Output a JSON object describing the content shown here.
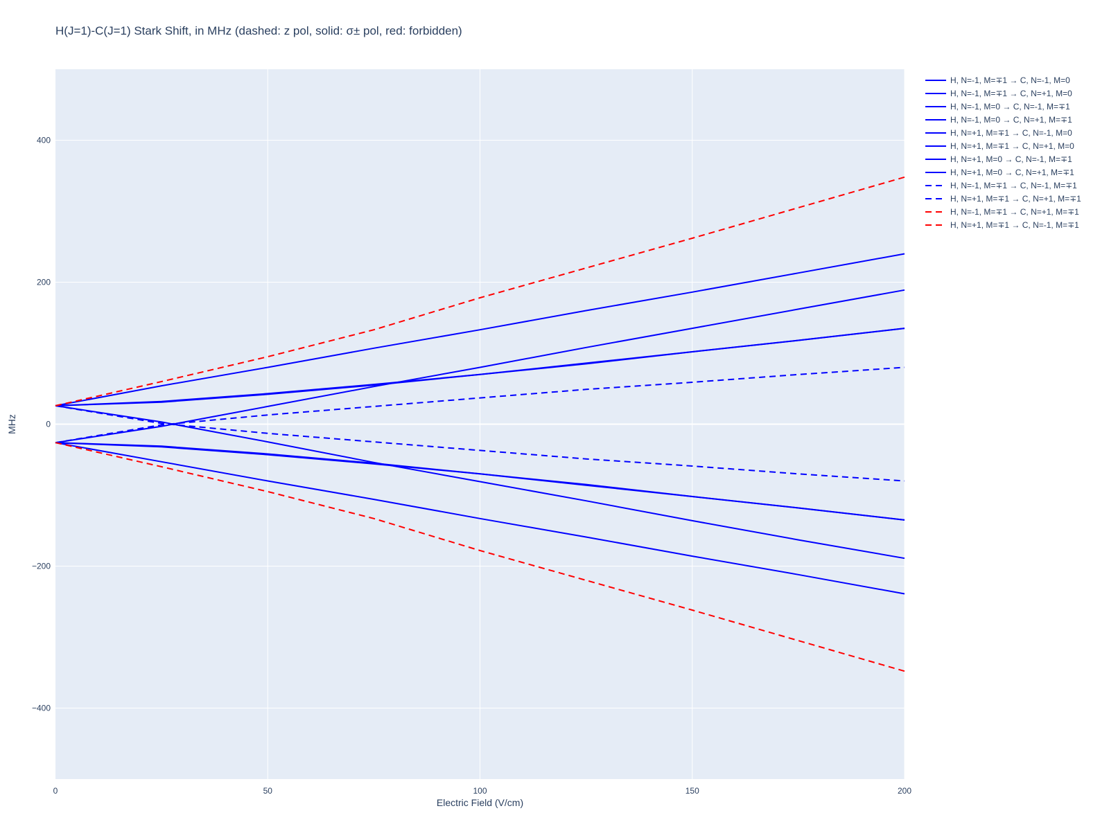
{
  "chart_data": {
    "type": "line",
    "title": "H(J=1)-C(J=1)  Stark Shift, in MHz (dashed: z pol, solid: σ± pol, red: forbidden)",
    "xlabel": "Electric Field (V/cm)",
    "ylabel": "MHz",
    "xlim": [
      0,
      200
    ],
    "ylim": [
      -500,
      500
    ],
    "x_ticks": [
      0,
      50,
      100,
      150,
      200
    ],
    "y_ticks": [
      -400,
      -200,
      0,
      200,
      400
    ],
    "y_tick_labels": [
      "−400",
      "−200",
      "0",
      "200",
      "400"
    ],
    "grid": true,
    "legend_position": "right",
    "plot_bgcolor": "#E5ECF6",
    "x": [
      0,
      25,
      50,
      75,
      100,
      125,
      150,
      175,
      200
    ],
    "series": [
      {
        "name": "H, N=-1, M=∓1 → C, N=-1, M=0",
        "color": "#0000ff",
        "dash": "solid",
        "values": [
          26,
          54,
          80,
          107,
          133,
          160,
          186,
          213,
          240
        ]
      },
      {
        "name": "H, N=-1, M=∓1 → C, N=+1, M=0",
        "color": "#0000ff",
        "dash": "solid",
        "values": [
          26,
          3,
          -25,
          -54,
          -81,
          -108,
          -136,
          -163,
          -189
        ]
      },
      {
        "name": "H, N=-1, M=0 → C, N=-1, M=∓1",
        "color": "#0000ff",
        "dash": "solid",
        "values": [
          -26,
          -32,
          -43,
          -56,
          -70,
          -85,
          -102,
          -118,
          -135
        ]
      },
      {
        "name": "H, N=-1, M=0 → C, N=+1, M=∓1",
        "color": "#0000ff",
        "dash": "solid",
        "values": [
          -26,
          -53,
          -80,
          -106,
          -133,
          -159,
          -186,
          -212,
          -239
        ]
      },
      {
        "name": "H, N=+1, M=∓1 → C, N=-1, M=0",
        "color": "#0000ff",
        "dash": "solid",
        "values": [
          26,
          31,
          42,
          55,
          70,
          86,
          102,
          118,
          135
        ]
      },
      {
        "name": "H, N=+1, M=∓1 → C, N=+1, M=0",
        "color": "#0000ff",
        "dash": "solid",
        "values": [
          -26,
          -3,
          25,
          53,
          80,
          108,
          135,
          162,
          189
        ]
      },
      {
        "name": "H, N=+1, M=0 → C, N=-1, M=∓1",
        "color": "#0000ff",
        "dash": "solid",
        "values": [
          26,
          32,
          43,
          56,
          70,
          85,
          102,
          118,
          135
        ]
      },
      {
        "name": "H, N=+1, M=0 → C, N=+1, M=∓1",
        "color": "#0000ff",
        "dash": "solid",
        "values": [
          -26,
          -31,
          -42,
          -55,
          -70,
          -86,
          -102,
          -118,
          -135
        ]
      },
      {
        "name": "H, N=-1, M=∓1 → C, N=-1, M=∓1",
        "color": "#0000ff",
        "dash": "dash",
        "values": [
          26,
          1,
          -13,
          -25,
          -37,
          -49,
          -59,
          -70,
          -80
        ]
      },
      {
        "name": "H, N=+1, M=∓1 → C, N=+1, M=∓1",
        "color": "#0000ff",
        "dash": "dash",
        "values": [
          -26,
          -1,
          13,
          25,
          37,
          49,
          59,
          70,
          80
        ]
      },
      {
        "name": "H, N=-1, M=∓1 → C, N=+1, M=∓1",
        "color": "#ff0000",
        "dash": "dash",
        "values": [
          26,
          60,
          95,
          133,
          178,
          220,
          262,
          305,
          348
        ]
      },
      {
        "name": "H, N=+1, M=∓1 → C, N=-1, M=∓1",
        "color": "#ff0000",
        "dash": "dash",
        "values": [
          -26,
          -60,
          -95,
          -133,
          -178,
          -220,
          -262,
          -305,
          -348
        ]
      }
    ]
  }
}
